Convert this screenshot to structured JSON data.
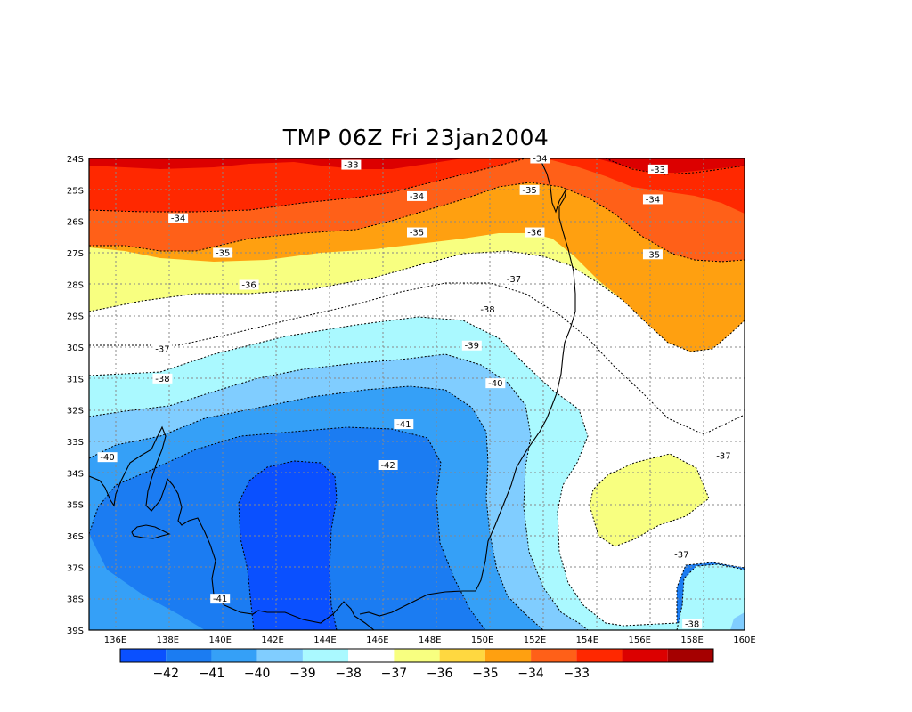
{
  "title": "TMP 06Z Fri 23jan2004",
  "y_ticks": [
    "24S",
    "25S",
    "26S",
    "27S",
    "28S",
    "29S",
    "30S",
    "31S",
    "32S",
    "33S",
    "34S",
    "35S",
    "36S",
    "37S",
    "38S",
    "39S"
  ],
  "x_ticks": [
    "136E",
    "138E",
    "140E",
    "142E",
    "144E",
    "146E",
    "148E",
    "150E",
    "152E",
    "154E",
    "156E",
    "158E",
    "160E"
  ],
  "colorbar": {
    "colors": [
      "#0a50ff",
      "#1b7cf2",
      "#35a0f7",
      "#80cdff",
      "#aaf9ff",
      "#ffffff",
      "#f8ff80",
      "#ffd840",
      "#ffa010",
      "#ff6018",
      "#ff2800",
      "#dc0000",
      "#a50000"
    ],
    "labels": [
      "−42",
      "−41",
      "−40",
      "−39",
      "−38",
      "−37",
      "−36",
      "−35",
      "−34",
      "−33"
    ]
  },
  "contour_labels": [
    {
      "text": "-33",
      "lon": 145,
      "lat": -24.2
    },
    {
      "text": "-33",
      "lon": 156.7,
      "lat": -24.35
    },
    {
      "text": "-34",
      "lon": 152.2,
      "lat": -24.0
    },
    {
      "text": "-34",
      "lon": 147.5,
      "lat": -25.2
    },
    {
      "text": "-34",
      "lon": 138.4,
      "lat": -25.9
    },
    {
      "text": "-34",
      "lon": 156.5,
      "lat": -25.3
    },
    {
      "text": "-35",
      "lon": 151.8,
      "lat": -25.0
    },
    {
      "text": "-35",
      "lon": 147.5,
      "lat": -26.35
    },
    {
      "text": "-35",
      "lon": 140.1,
      "lat": -27.0
    },
    {
      "text": "-35",
      "lon": 156.5,
      "lat": -27.05
    },
    {
      "text": "-36",
      "lon": 152.0,
      "lat": -26.35
    },
    {
      "text": "-36",
      "lon": 141.1,
      "lat": -28.02
    },
    {
      "text": "-37",
      "lon": 151.2,
      "lat": -27.83
    },
    {
      "text": "-37",
      "lon": 137.8,
      "lat": -30.05
    },
    {
      "text": "-37",
      "lon": 159.2,
      "lat": -33.45
    },
    {
      "text": "-37",
      "lon": 157.6,
      "lat": -36.6
    },
    {
      "text": "-38",
      "lon": 150.2,
      "lat": -28.8
    },
    {
      "text": "-38",
      "lon": 137.8,
      "lat": -31.0
    },
    {
      "text": "-38",
      "lon": 158.0,
      "lat": -38.8
    },
    {
      "text": "-39",
      "lon": 149.6,
      "lat": -29.95
    },
    {
      "text": "-40",
      "lon": 150.5,
      "lat": -31.15
    },
    {
      "text": "-40",
      "lon": 135.7,
      "lat": -33.5
    },
    {
      "text": "-41",
      "lon": 147.0,
      "lat": -32.45
    },
    {
      "text": "-41",
      "lon": 140.0,
      "lat": -38.0
    },
    {
      "text": "-42",
      "lon": 146.4,
      "lat": -33.75
    }
  ]
}
